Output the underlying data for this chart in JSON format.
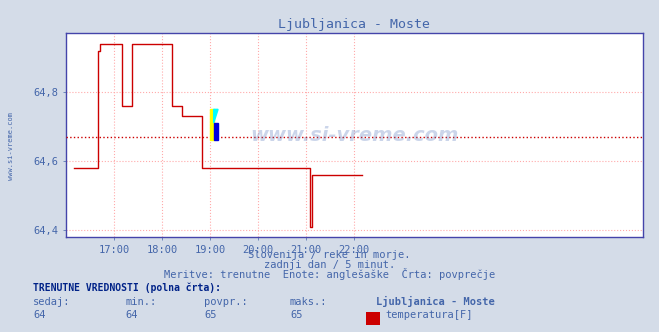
{
  "title": "Ljubljanica - Moste",
  "bg_color": "#d4dce8",
  "plot_bg_color": "#ffffff",
  "line_color": "#cc0000",
  "avg_line_color": "#cc0000",
  "axis_color": "#4444aa",
  "grid_color": "#ffaaaa",
  "text_color": "#4466aa",
  "ylim": [
    64.38,
    64.97
  ],
  "yticks": [
    64.4,
    64.6,
    64.8
  ],
  "xlim": [
    0,
    288
  ],
  "xtick_positions": [
    24,
    48,
    72,
    96,
    120,
    144
  ],
  "xtick_labels": [
    "17:00",
    "18:00",
    "19:00",
    "20:00",
    "21:00",
    "22:00"
  ],
  "subtitle1": "Slovenija / reke in morje.",
  "subtitle2": "zadnji dan / 5 minut.",
  "subtitle3": "Meritve: trenutne  Enote: anglešaške  Črta: povprečje",
  "footer_label": "TRENUTNE VREDNOSTI (polna črta):",
  "col_sedaj": "sedaj:",
  "col_min": "min.:",
  "col_povpr": "povpr.:",
  "col_maks": "maks.:",
  "col_name": "Ljubljanica - Moste",
  "val_sedaj": "64",
  "val_min": "64",
  "val_povpr": "65",
  "val_maks": "65",
  "legend_label": "temperatura[F]",
  "legend_color": "#cc0000",
  "avg_value": 64.67,
  "marker_x": 72,
  "marker_y": 64.67,
  "watermark": "www.si-vreme.com",
  "left_label": "www.si-vreme.com"
}
